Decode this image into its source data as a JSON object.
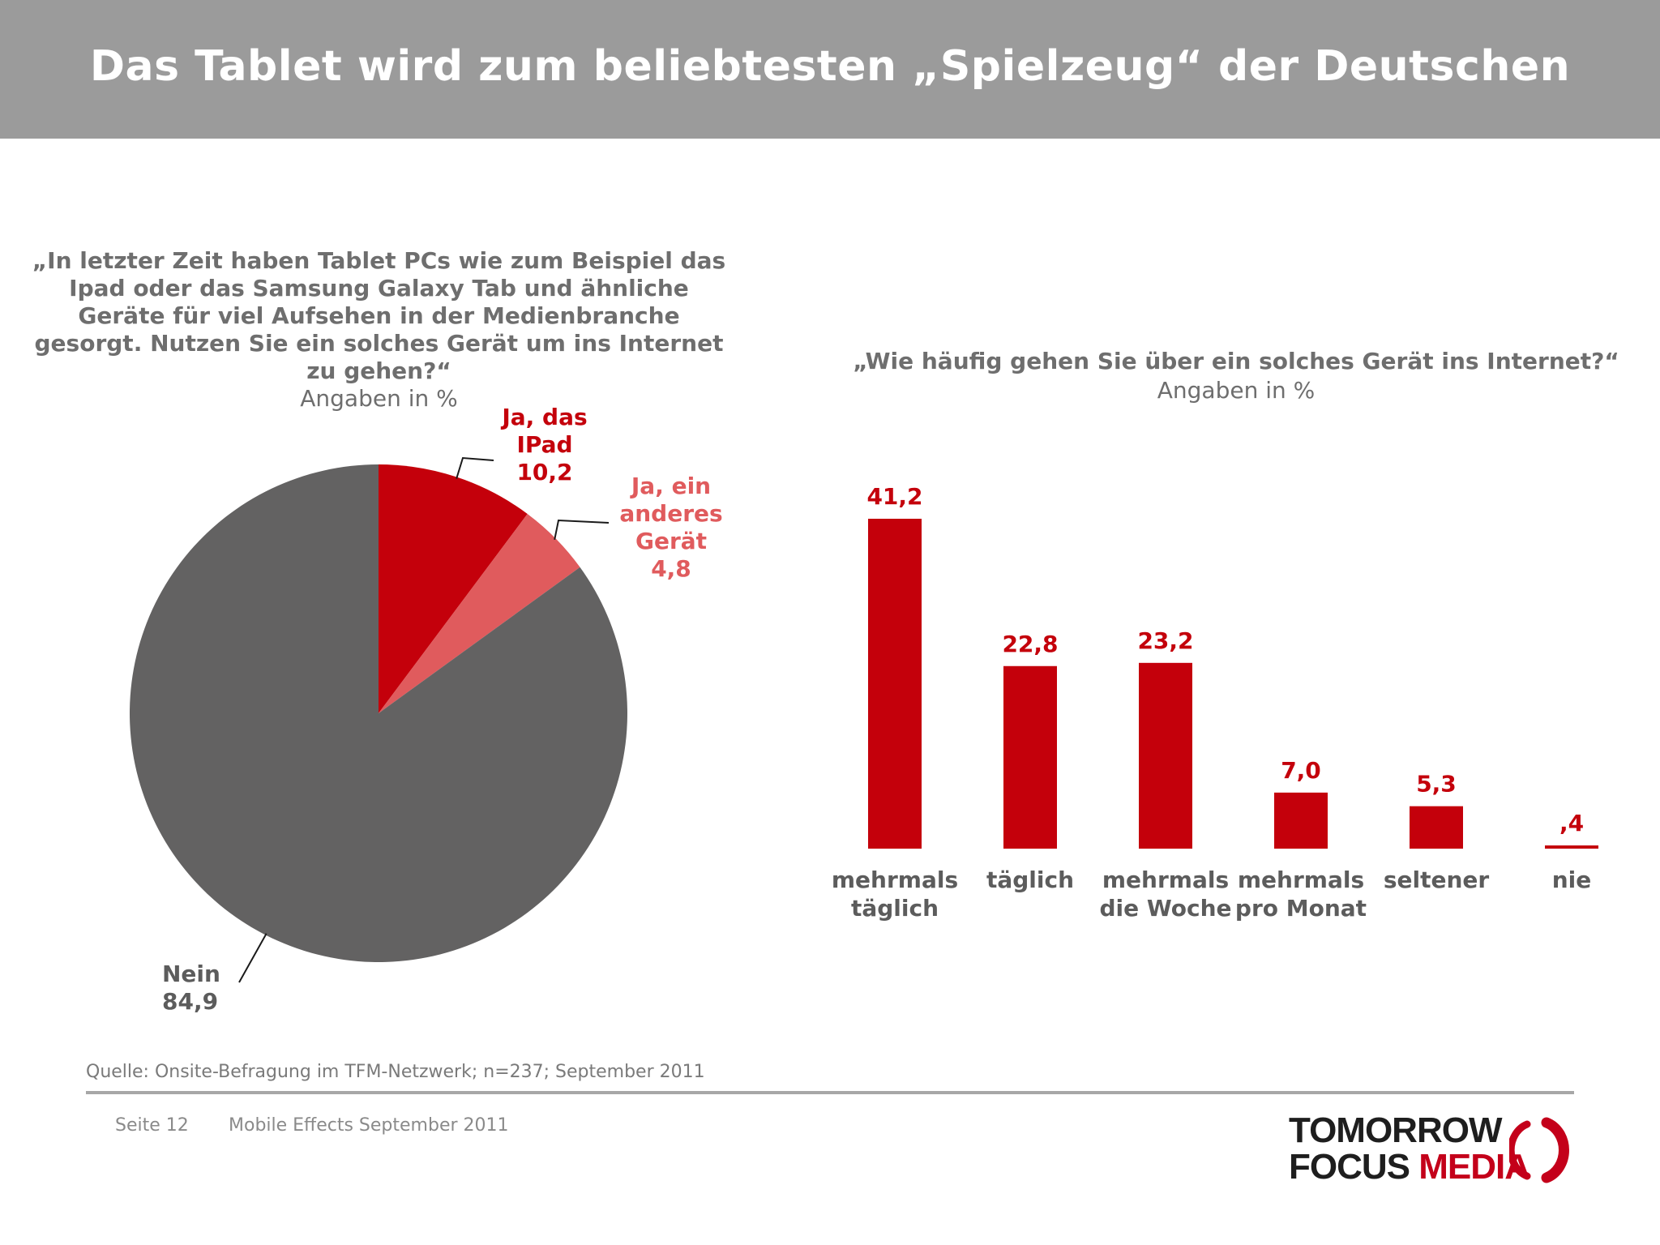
{
  "header": {
    "title": "Das Tablet wird zum beliebtesten „Spielzeug“ der Deutschen"
  },
  "colors": {
    "dark_red": "#c4000b",
    "light_red": "#e05b5d",
    "grey": "#636262",
    "bar_label_grey": "#5c5c5c"
  },
  "chart_data": [
    {
      "type": "pie",
      "title": "„In letzter Zeit haben Tablet PCs wie zum Beispiel das Ipad oder das Samsung Galaxy Tab und ähnliche Geräte für viel Aufsehen in der Medienbranche gesorgt. Nutzen Sie ein solches Gerät um ins Internet zu gehen?“",
      "subtitle": "Angaben in %",
      "slices": [
        {
          "label": "Ja, das IPad",
          "value": 10.2,
          "value_text": "10,2",
          "color": "#c4000b"
        },
        {
          "label": "Ja, ein anderes Gerät",
          "value": 4.8,
          "value_text": "4,8",
          "color": "#e05b5d"
        },
        {
          "label": "Nein",
          "value": 84.9,
          "value_text": "84,9",
          "color": "#636262"
        }
      ]
    },
    {
      "type": "bar",
      "title": "„Wie häufig gehen Sie über ein solches Gerät ins Internet?“",
      "subtitle": "Angaben in %",
      "categories": [
        "mehrmals täglich",
        "täglich",
        "mehrmals die Woche",
        "mehrmals pro Monat",
        "seltener",
        "nie"
      ],
      "values": [
        41.2,
        22.8,
        23.2,
        7.0,
        5.3,
        0.4
      ],
      "value_labels": [
        "41,2",
        "22,8",
        "23,2",
        "7,0",
        "5,3",
        ",4"
      ],
      "color": "#c4000b",
      "ylim": [
        0,
        41.2
      ],
      "grid": false
    }
  ],
  "source": "Quelle: Onsite-Befragung im TFM-Netzwerk; n=237; September 2011",
  "footer": {
    "page": "Seite 12",
    "event": "Mobile Effects September 2011"
  },
  "logo": {
    "line1": "TOMORROW",
    "line2_a": "FOCUS ",
    "line2_b": "MEDIA"
  }
}
